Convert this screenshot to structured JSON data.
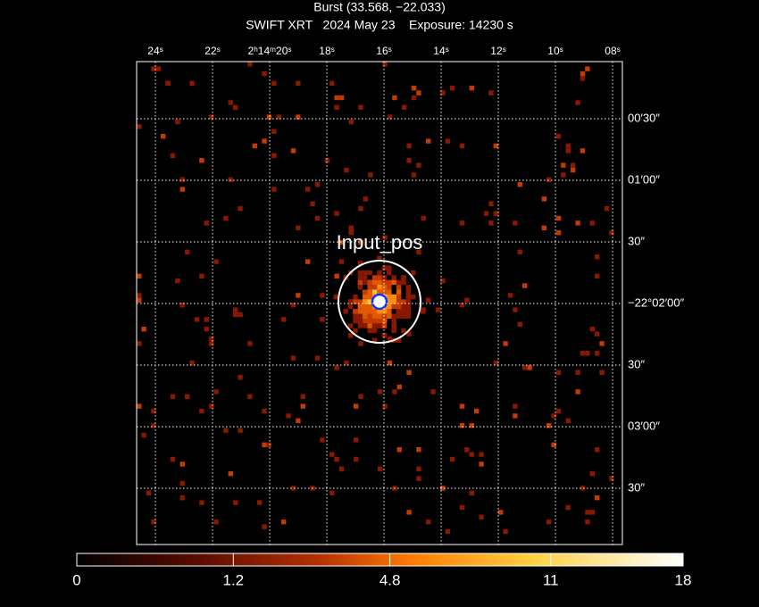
{
  "chart_data": {
    "type": "image",
    "title": "Burst (33.568, −22.033)",
    "subtitle": "SWIFT XRT   2024 May 23    Exposure: 14230 s",
    "annotation": "Input_pos",
    "top_axis": {
      "labels": [
        "24ˢ",
        "22ˢ",
        "2ʰ14ᵐ20ˢ",
        "18ˢ",
        "16ˢ",
        "14ˢ",
        "12ˢ",
        "10ˢ",
        "08ˢ"
      ]
    },
    "right_axis": {
      "labels": [
        "00′30″",
        "01′00″",
        "30″",
        "−22°02′00″",
        "30″",
        "03′00″",
        "30″"
      ]
    },
    "colorbar": {
      "scale": "sqrt",
      "lim": [
        0,
        18
      ],
      "ticks": [
        0,
        1.2,
        4.8,
        11,
        18
      ]
    },
    "grid": true
  }
}
